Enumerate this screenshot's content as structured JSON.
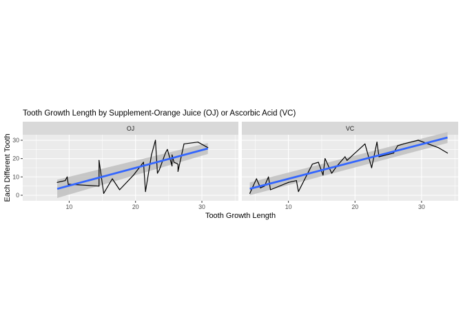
{
  "chart_data": {
    "type": "line",
    "title": "Tooth Growth Length by Supplement-Orange Juice (OJ) or Ascorbic Acid (VC)",
    "xlabel": "Tooth Growth Length",
    "ylabel": "Each Different Tooth",
    "xlim": [
      3,
      35.5
    ],
    "ylim": [
      -3,
      33
    ],
    "x_ticks": [
      10,
      20,
      30
    ],
    "y_ticks": [
      0,
      10,
      20,
      30
    ],
    "grid": true,
    "panels": [
      {
        "label": "OJ",
        "series": [
          {
            "x": [
              8.2,
              9.4,
              9.7,
              9.9,
              10.0,
              14.5,
              14.5,
              15.2,
              16.5,
              17.6,
              19.7,
              21.2,
              21.5,
              22.4,
              23.0,
              23.3,
              23.6,
              24.5,
              24.8,
              25.5,
              25.5,
              25.8,
              26.4,
              26.4,
              27.3,
              29.4,
              30.9
            ],
            "y": [
              7,
              8,
              10,
              5,
              6,
              5,
              19,
              1,
              9,
              3,
              11,
              18,
              2,
              22,
              30,
              12,
              14,
              23,
              25,
              16,
              22,
              18,
              17,
              13,
              28,
              29,
              26
            ]
          },
          {
            "name": "fit",
            "x": [
              8.2,
              30.9
            ],
            "y": [
              3.5,
              25.5
            ],
            "band_lower": [
              -1.5,
              22.5
            ],
            "band_upper": [
              8.5,
              28.5
            ]
          }
        ]
      },
      {
        "label": "VC",
        "series": [
          {
            "x": [
              4.2,
              5.2,
              5.8,
              6.4,
              7.0,
              7.3,
              10.0,
              11.2,
              11.5,
              13.6,
              14.5,
              15.2,
              15.5,
              16.5,
              17.3,
              18.5,
              18.8,
              21.5,
              22.5,
              23.3,
              23.6,
              25.8,
              26.4,
              27.3,
              29.5,
              32.5,
              33.9
            ],
            "y": [
              1,
              9,
              4,
              5,
              10,
              3,
              7,
              8,
              2,
              17,
              18,
              11,
              20,
              12,
              16,
              21,
              19,
              28,
              15,
              29,
              21,
              23,
              27,
              28,
              30,
              26,
              23
            ]
          },
          {
            "name": "fit",
            "x": [
              4.2,
              33.9
            ],
            "y": [
              3.5,
              31.5
            ],
            "band_lower": [
              0.0,
              28.5
            ],
            "band_upper": [
              7.0,
              34.5
            ]
          }
        ]
      }
    ],
    "colors": {
      "panel_background": "#ebebeb",
      "strip_background": "#d9d9d9",
      "gridline": "#ffffff",
      "data_line": "#000000",
      "fit_line": "#3366ff",
      "confidence_band": "#bfbfbf"
    }
  }
}
